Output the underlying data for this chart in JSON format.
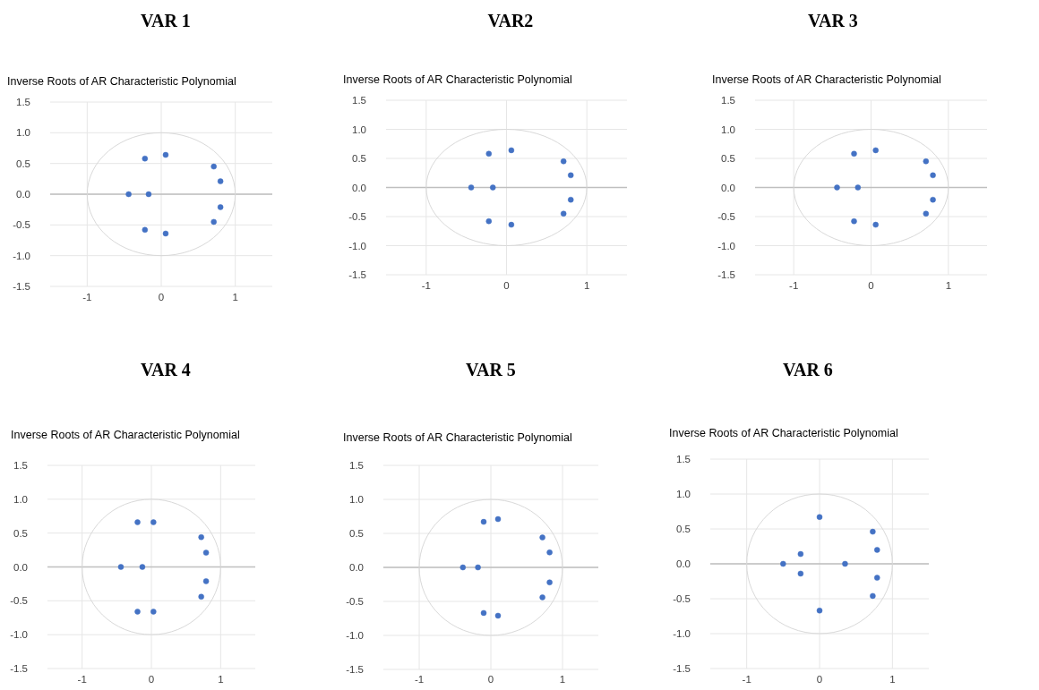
{
  "chart_data": [
    {
      "type": "scatter",
      "title": "VAR 1",
      "subtitle": "Inverse Roots of AR Characteristic Polynomial",
      "xlim": [
        -1.5,
        1.5
      ],
      "xticks": [
        -1,
        0,
        1
      ],
      "ylim": [
        -1.5,
        1.5
      ],
      "yticks": [
        -1.5,
        {
          "value": -1,
          "label": "-1.0"
        },
        -0.5,
        {
          "value": 0,
          "label": "0.0"
        },
        0.5,
        {
          "value": 1,
          "label": "1.0"
        },
        1.5
      ],
      "grid": true,
      "marker": "circle",
      "series": [
        {
          "color": "#4472c4",
          "x": [
            -0.22,
            0.06,
            0.71,
            0.8,
            -0.44,
            -0.17,
            -0.22,
            0.06,
            0.71,
            0.8
          ],
          "values": [
            0.58,
            0.64,
            0.45,
            0.21,
            0,
            0,
            -0.58,
            -0.64,
            -0.45,
            -0.21
          ]
        }
      ]
    },
    {
      "type": "scatter",
      "title": "VAR2",
      "subtitle": "Inverse Roots of AR Characteristic Polynomial",
      "xlim": [
        -1.5,
        1.5
      ],
      "xticks": [
        -1,
        0,
        1
      ],
      "ylim": [
        -1.5,
        1.5
      ],
      "yticks": [
        -1.5,
        {
          "value": -1,
          "label": "-1.0"
        },
        -0.5,
        {
          "value": 0,
          "label": "0.0"
        },
        0.5,
        {
          "value": 1,
          "label": "1.0"
        },
        1.5
      ],
      "grid": true,
      "marker": "circle",
      "series": [
        {
          "color": "#4472c4",
          "x": [
            -0.22,
            0.06,
            0.71,
            0.8,
            -0.44,
            -0.17,
            -0.22,
            0.06,
            0.71,
            0.8
          ],
          "values": [
            0.58,
            0.64,
            0.45,
            0.21,
            0,
            0,
            -0.58,
            -0.64,
            -0.45,
            -0.21
          ]
        }
      ]
    },
    {
      "type": "scatter",
      "title": "VAR 3",
      "subtitle": "Inverse Roots of AR Characteristic Polynomial",
      "xlim": [
        -1.5,
        1.5
      ],
      "xticks": [
        -1,
        0,
        1
      ],
      "ylim": [
        -1.5,
        1.5
      ],
      "yticks": [
        -1.5,
        {
          "value": -1,
          "label": "-1.0"
        },
        -0.5,
        {
          "value": 0,
          "label": "0.0"
        },
        0.5,
        {
          "value": 1,
          "label": "1.0"
        },
        1.5
      ],
      "grid": true,
      "marker": "circle",
      "series": [
        {
          "color": "#4472c4",
          "x": [
            -0.22,
            0.06,
            0.71,
            0.8,
            -0.44,
            -0.17,
            -0.22,
            0.06,
            0.71,
            0.8
          ],
          "values": [
            0.58,
            0.64,
            0.45,
            0.21,
            0,
            0,
            -0.58,
            -0.64,
            -0.45,
            -0.21
          ]
        }
      ]
    },
    {
      "type": "scatter",
      "title": "VAR 4",
      "subtitle": "Inverse Roots of AR Characteristic Polynomial",
      "xlim": [
        -1.5,
        1.5
      ],
      "xticks": [
        -1,
        0,
        1
      ],
      "ylim": [
        -1.5,
        1.5
      ],
      "yticks": [
        -1.5,
        {
          "value": -1,
          "label": "-1.0"
        },
        -0.5,
        {
          "value": 0,
          "label": "0.0"
        },
        0.5,
        {
          "value": 1,
          "label": "1.0"
        },
        1.5
      ],
      "grid": true,
      "marker": "circle",
      "series": [
        {
          "color": "#4472c4",
          "x": [
            -0.2,
            0.03,
            0.72,
            0.79,
            -0.44,
            -0.13,
            -0.2,
            0.03,
            0.72,
            0.79
          ],
          "values": [
            0.66,
            0.66,
            0.44,
            0.21,
            0,
            0,
            -0.66,
            -0.66,
            -0.44,
            -0.21
          ]
        }
      ]
    },
    {
      "type": "scatter",
      "title": "VAR 5",
      "subtitle": "Inverse Roots of AR Characteristic Polynomial",
      "xlim": [
        -1.5,
        1.5
      ],
      "xticks": [
        -1,
        0,
        1
      ],
      "ylim": [
        -1.5,
        1.5
      ],
      "yticks": [
        -1.5,
        {
          "value": -1,
          "label": "-1.0"
        },
        -0.5,
        {
          "value": 0,
          "label": "0.0"
        },
        0.5,
        {
          "value": 1,
          "label": "1.0"
        },
        1.5
      ],
      "grid": true,
      "marker": "circle",
      "series": [
        {
          "color": "#4472c4",
          "x": [
            -0.1,
            0.1,
            0.72,
            0.82,
            -0.39,
            -0.18,
            -0.1,
            0.1,
            0.72,
            0.82
          ],
          "values": [
            0.67,
            0.71,
            0.44,
            0.22,
            0,
            0,
            -0.67,
            -0.71,
            -0.44,
            -0.22
          ]
        }
      ]
    },
    {
      "type": "scatter",
      "title": "VAR 6",
      "subtitle": "Inverse Roots of AR Characteristic Polynomial",
      "xlim": [
        -1.5,
        1.5
      ],
      "xticks": [
        -1,
        0,
        1
      ],
      "ylim": [
        -1.5,
        1.5
      ],
      "yticks": [
        -1.5,
        {
          "value": -1,
          "label": "-1.0"
        },
        -0.5,
        {
          "value": 0,
          "label": "0.0"
        },
        0.5,
        {
          "value": 1,
          "label": "1.0"
        },
        1.5
      ],
      "grid": true,
      "marker": "circle",
      "series": [
        {
          "color": "#4472c4",
          "x": [
            0,
            0.73,
            0.79,
            -0.26,
            -0.5,
            0.35,
            0,
            0.73,
            0.79,
            -0.26
          ],
          "values": [
            0.67,
            0.46,
            0.2,
            0.14,
            0,
            0,
            -0.67,
            -0.46,
            -0.2,
            -0.14
          ]
        }
      ]
    }
  ]
}
